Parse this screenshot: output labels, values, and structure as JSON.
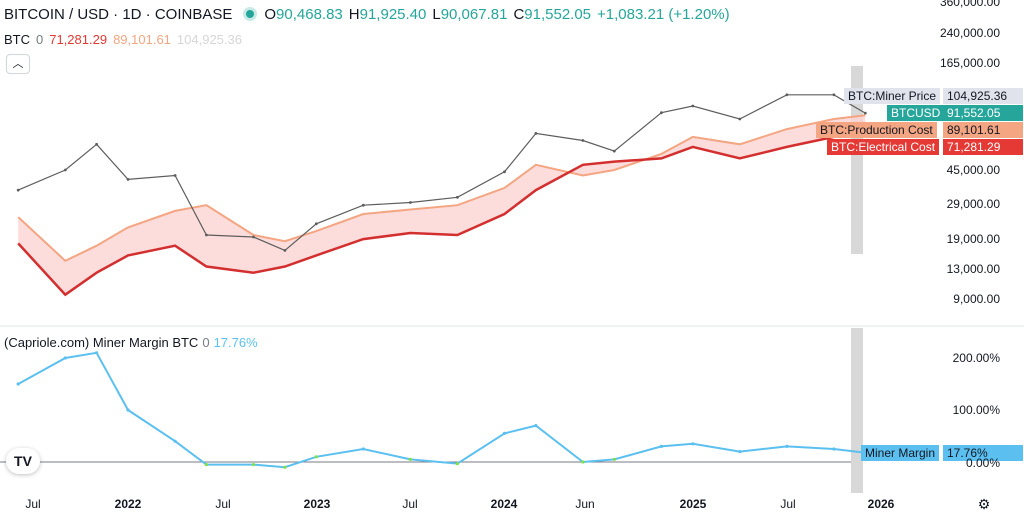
{
  "header": {
    "symbol": "BITCOIN / USD · 1D · COINBASE",
    "ohlc": [
      {
        "label": "O",
        "value": "90,468.83"
      },
      {
        "label": "H",
        "value": "91,925.40"
      },
      {
        "label": "L",
        "value": "90,067.81"
      },
      {
        "label": "C",
        "value": "91,552.05"
      }
    ],
    "change": "+1,083.21 (+1.20%)"
  },
  "legend_row": {
    "name": "BTC",
    "zero": "0",
    "electrical": "71,281.29",
    "production": "89,101.61",
    "miner_price": "104,925.36"
  },
  "collapse_icon": "chevron-up-icon",
  "indicator": {
    "name": "(Capriole.com) Miner Margin BTC",
    "zero": "0",
    "value": "17.76%"
  },
  "price_tags": [
    {
      "label": "BTC:Miner Price",
      "value": "104,925.36",
      "color": "#e0e3eb",
      "text": "#131722"
    },
    {
      "label": "BTCUSD",
      "value": "91,552.05",
      "color": "#26a69a",
      "text": "#ffffff"
    },
    {
      "label": "BTC:Production Cost",
      "value": "89,101.61",
      "color": "#f4a582",
      "text": "#131722"
    },
    {
      "label": "BTC:Electrical Cost",
      "value": "71,281.29",
      "color": "#e53935",
      "text": "#ffffff"
    }
  ],
  "margin_tag": {
    "label": "Miner Margin",
    "value": "17.76%",
    "color": "#5bc0f0"
  },
  "price_axis": [
    "360,000.00",
    "240,000.00",
    "165,000.00",
    "45,000.00",
    "29,000.00",
    "19,000.00",
    "13,000.00",
    "9,000.00"
  ],
  "margin_axis": [
    "200.00%",
    "100.00%",
    "0.00%"
  ],
  "time_axis": [
    {
      "label": "Jul",
      "bold": false
    },
    {
      "label": "2022",
      "bold": true
    },
    {
      "label": "Jul",
      "bold": false
    },
    {
      "label": "2023",
      "bold": true
    },
    {
      "label": "Jul",
      "bold": false
    },
    {
      "label": "2024",
      "bold": true
    },
    {
      "label": "Jun",
      "bold": false
    },
    {
      "label": "2025",
      "bold": true
    },
    {
      "label": "Jul",
      "bold": false
    },
    {
      "label": "2026",
      "bold": true
    }
  ],
  "logo": "TV",
  "settings_icon": "gear-icon",
  "colors": {
    "price": "#5d5d5d",
    "miner_price": "#cfcfcf",
    "production": "#f4a582",
    "electrical": "#d32f2f",
    "band_fill": "#fbd5d2",
    "margin": "#5bc0f0",
    "margin_low": "#7ee04a"
  },
  "chart_data": [
    {
      "type": "line",
      "series": [
        {
          "name": "BTCUSD",
          "x": [
            "2021-06",
            "2021-09",
            "2021-11",
            "2022-01",
            "2022-04",
            "2022-06",
            "2022-09",
            "2022-11",
            "2023-01",
            "2023-04",
            "2023-07",
            "2023-10",
            "2024-01",
            "2024-03",
            "2024-06",
            "2024-08",
            "2024-11",
            "2025-01",
            "2025-04",
            "2025-07",
            "2025-10",
            "2025-12"
          ],
          "values": [
            35000,
            45000,
            62000,
            40000,
            42000,
            20000,
            19500,
            16500,
            23000,
            29000,
            30000,
            32000,
            44000,
            71000,
            65000,
            57000,
            92000,
            100000,
            85000,
            115000,
            115000,
            91552
          ]
        },
        {
          "name": "BTC:Production Cost",
          "x": [
            "2021-06",
            "2021-09",
            "2021-11",
            "2022-01",
            "2022-04",
            "2022-06",
            "2022-09",
            "2022-11",
            "2023-01",
            "2023-04",
            "2023-07",
            "2023-10",
            "2024-01",
            "2024-03",
            "2024-06",
            "2024-08",
            "2024-11",
            "2025-01",
            "2025-04",
            "2025-07",
            "2025-10",
            "2025-12"
          ],
          "values": [
            25000,
            14500,
            17500,
            22000,
            27000,
            29000,
            20000,
            18500,
            21000,
            26000,
            27500,
            29000,
            36000,
            48000,
            42000,
            45000,
            55000,
            68000,
            62000,
            75000,
            85000,
            89101
          ]
        },
        {
          "name": "BTC:Electrical Cost",
          "x": [
            "2021-06",
            "2021-09",
            "2021-11",
            "2022-01",
            "2022-04",
            "2022-06",
            "2022-09",
            "2022-11",
            "2023-01",
            "2023-04",
            "2023-07",
            "2023-10",
            "2024-01",
            "2024-03",
            "2024-06",
            "2024-08",
            "2024-11",
            "2025-01",
            "2025-04",
            "2025-07",
            "2025-10",
            "2025-12"
          ],
          "values": [
            18000,
            9500,
            12500,
            15500,
            17500,
            13500,
            12500,
            13500,
            15500,
            19000,
            20500,
            20000,
            26000,
            35000,
            48000,
            50000,
            52000,
            60000,
            52000,
            60000,
            68000,
            71281
          ]
        }
      ]
    },
    {
      "type": "line",
      "series": [
        {
          "name": "Miner Margin",
          "x": [
            "2021-06",
            "2021-09",
            "2021-11",
            "2022-01",
            "2022-04",
            "2022-06",
            "2022-09",
            "2022-11",
            "2023-01",
            "2023-04",
            "2023-07",
            "2023-10",
            "2024-01",
            "2024-03",
            "2024-06",
            "2024-08",
            "2024-11",
            "2025-01",
            "2025-04",
            "2025-07",
            "2025-10",
            "2025-12"
          ],
          "values": [
            150,
            200,
            210,
            100,
            40,
            -5,
            -5,
            -10,
            10,
            25,
            5,
            -3,
            55,
            70,
            0,
            5,
            30,
            35,
            20,
            30,
            25,
            17.76
          ]
        }
      ]
    }
  ]
}
